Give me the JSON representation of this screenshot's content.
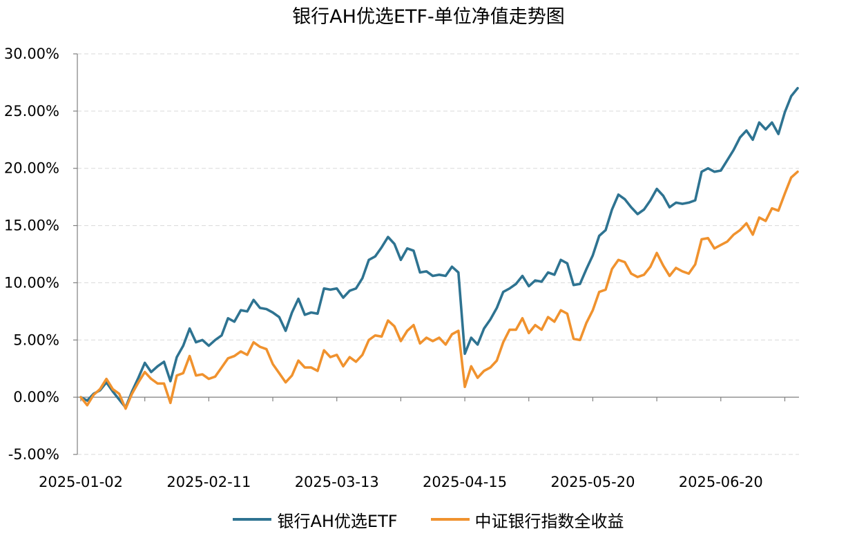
{
  "chart_data": {
    "type": "line",
    "title": "银行AH优选ETF-单位净值走势图",
    "xlabel": "",
    "ylabel": "",
    "ylim": [
      -5,
      30
    ],
    "y_tick_values": [
      -5,
      0,
      5,
      10,
      15,
      20,
      25,
      30
    ],
    "y_tick_labels": [
      "-5.00%",
      "0.00%",
      "5.00%",
      "10.00%",
      "15.00%",
      "20.00%",
      "25.00%",
      "30.00%"
    ],
    "x_tick_labels": [
      "2025-01-02",
      "2025-02-11",
      "2025-03-13",
      "2025-04-15",
      "2025-05-20",
      "2025-06-20"
    ],
    "x_tick_index": [
      0,
      20,
      40,
      60,
      80,
      100
    ],
    "grid": "horizontal dashed",
    "legend_position": "bottom",
    "series": [
      {
        "name": "银行AH优选ETF",
        "color": "#2E7391",
        "values": [
          0.0,
          -0.3,
          0.3,
          0.6,
          1.3,
          0.5,
          -0.2,
          -0.9,
          0.5,
          1.7,
          3.0,
          2.2,
          2.7,
          3.1,
          1.4,
          3.5,
          4.5,
          6.0,
          4.8,
          5.0,
          4.5,
          5.0,
          5.4,
          6.9,
          6.6,
          7.6,
          7.5,
          8.5,
          7.8,
          7.7,
          7.4,
          7.0,
          5.8,
          7.4,
          8.6,
          7.2,
          7.4,
          7.3,
          9.5,
          9.4,
          9.5,
          8.7,
          9.3,
          9.5,
          10.4,
          12.0,
          12.3,
          13.1,
          14.0,
          13.4,
          12.0,
          13.0,
          12.8,
          10.9,
          11.0,
          10.6,
          10.7,
          10.6,
          11.4,
          10.9,
          3.8,
          5.2,
          4.6,
          6.0,
          6.8,
          7.8,
          9.2,
          9.5,
          9.9,
          10.6,
          9.7,
          10.2,
          10.1,
          10.9,
          10.7,
          12.0,
          11.7,
          9.8,
          9.9,
          11.2,
          12.4,
          14.1,
          14.6,
          16.4,
          17.7,
          17.3,
          16.6,
          16.0,
          16.4,
          17.2,
          18.2,
          17.6,
          16.6,
          17.0,
          16.9,
          17.0,
          17.2,
          19.7,
          20.0,
          19.7,
          19.8,
          20.7,
          21.6,
          22.7,
          23.3,
          22.5,
          24.0,
          23.4,
          24.0,
          23.0,
          24.9,
          26.3,
          27.0
        ]
      },
      {
        "name": "中证银行指数全收益",
        "color": "#F0922E",
        "values": [
          0.0,
          -0.7,
          0.2,
          0.7,
          1.6,
          0.7,
          0.3,
          -1.0,
          0.3,
          1.3,
          2.2,
          1.6,
          1.2,
          1.2,
          -0.5,
          1.9,
          2.1,
          3.6,
          1.9,
          2.0,
          1.6,
          1.8,
          2.6,
          3.4,
          3.6,
          4.0,
          3.7,
          4.8,
          4.4,
          4.2,
          2.9,
          2.1,
          1.3,
          1.9,
          3.2,
          2.6,
          2.6,
          2.3,
          4.1,
          3.5,
          3.7,
          2.7,
          3.5,
          3.1,
          3.7,
          5.0,
          5.4,
          5.3,
          6.7,
          6.2,
          4.9,
          5.8,
          6.3,
          4.7,
          5.2,
          4.9,
          5.2,
          4.6,
          5.5,
          5.8,
          0.9,
          2.7,
          1.7,
          2.3,
          2.6,
          3.2,
          4.8,
          5.9,
          5.9,
          6.9,
          5.6,
          6.3,
          5.9,
          7.0,
          6.6,
          7.6,
          7.3,
          5.1,
          5.0,
          6.5,
          7.6,
          9.2,
          9.4,
          11.2,
          12.0,
          11.8,
          10.8,
          10.5,
          10.7,
          11.4,
          12.6,
          11.5,
          10.6,
          11.3,
          11.0,
          10.8,
          11.6,
          13.8,
          13.9,
          13.0,
          13.3,
          13.6,
          14.2,
          14.6,
          15.2,
          14.2,
          15.7,
          15.4,
          16.5,
          16.3,
          17.8,
          19.2,
          19.7
        ]
      }
    ]
  }
}
